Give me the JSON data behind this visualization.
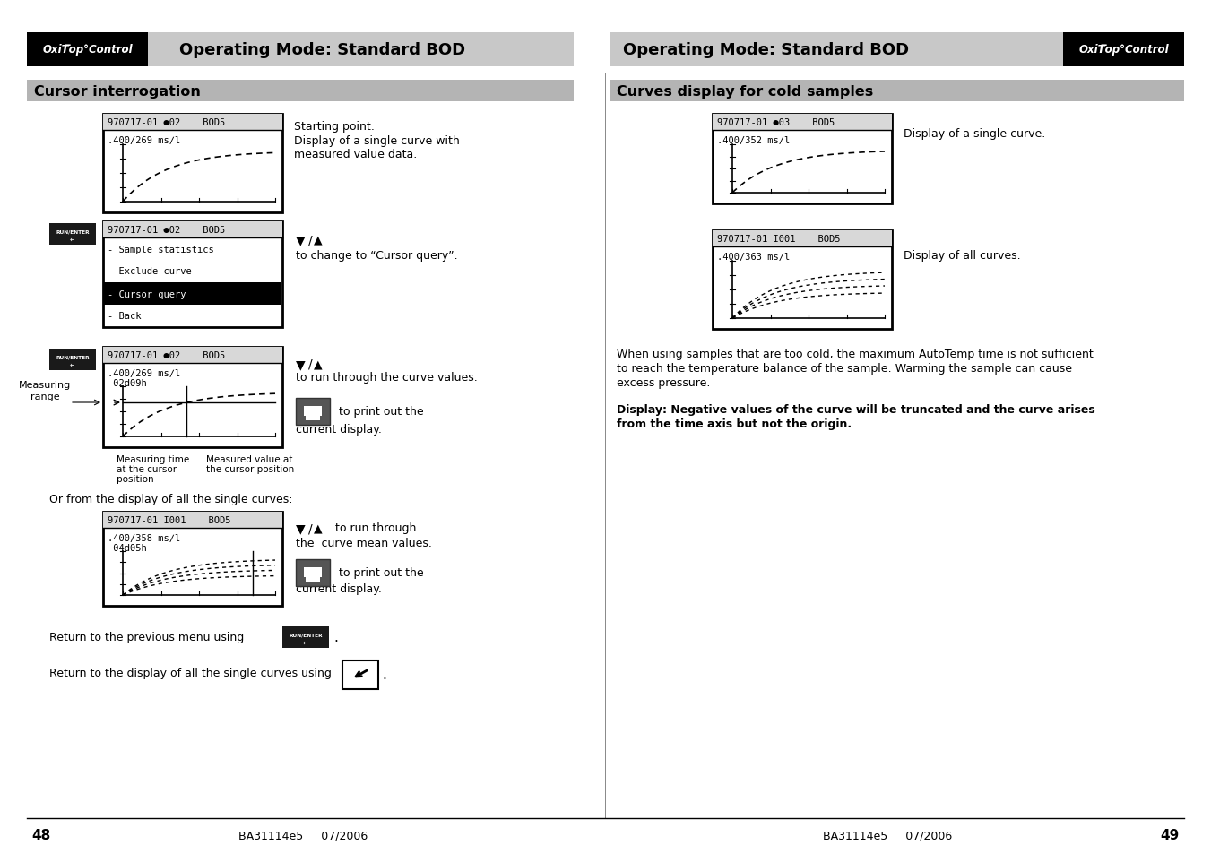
{
  "page_width": 13.51,
  "page_height": 9.54,
  "bg_color": "#ffffff",
  "header_bg": "#c8c8c8",
  "section_bg": "#b4b4b4",
  "left_title": "Cursor interrogation",
  "right_title": "Curves display for cold samples",
  "header_text": "Operating Mode: Standard BOD",
  "page_left": "48",
  "page_right": "49",
  "footer_center_left": "BA31114e5     07/2006",
  "footer_center_right": "BA31114e5     07/2006"
}
